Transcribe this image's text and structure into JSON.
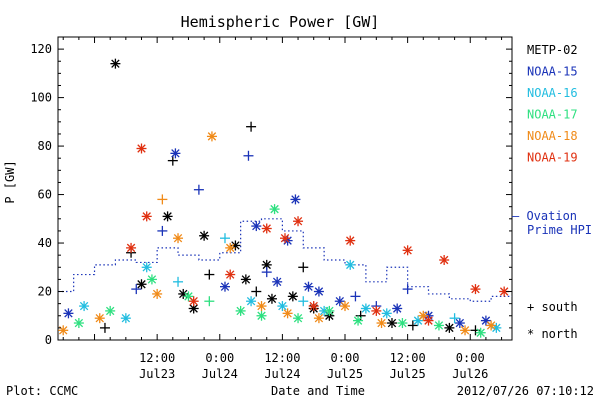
{
  "chart_data": {
    "type": "scatter",
    "title": "Hemispheric Power [GW]",
    "ylabel": "P [GW]",
    "xlabel": "Date and Time",
    "ylim": [
      0,
      125
    ],
    "xlim": [
      "2012-07-22 17:00",
      "2012-07-26 08:00"
    ],
    "yticks": [
      0,
      20,
      40,
      60,
      80,
      100,
      120
    ],
    "xticks": [
      {
        "t": "2012-07-23 12:00",
        "time": "12:00",
        "date": "Jul23"
      },
      {
        "t": "2012-07-24 00:00",
        "time": "0:00",
        "date": "Jul24"
      },
      {
        "t": "2012-07-24 12:00",
        "time": "12:00",
        "date": "Jul24"
      },
      {
        "t": "2012-07-25 00:00",
        "time": "0:00",
        "date": "Jul25"
      },
      {
        "t": "2012-07-25 12:00",
        "time": "12:00",
        "date": "Jul25"
      },
      {
        "t": "2012-07-26 00:00",
        "time": "0:00",
        "date": "Jul26"
      }
    ],
    "marker_legend": [
      {
        "symbol": "+",
        "label": "south"
      },
      {
        "symbol": "*",
        "label": "north"
      }
    ],
    "series": [
      {
        "name": "METP-02",
        "color": "#000000",
        "points": [
          {
            "x": "2012-07-23 04:00",
            "y": 114,
            "m": "*"
          },
          {
            "x": "2012-07-23 14:00",
            "y": 51,
            "m": "*"
          },
          {
            "x": "2012-07-23 15:00",
            "y": 74,
            "m": "+"
          },
          {
            "x": "2012-07-23 07:00",
            "y": 36,
            "m": "+"
          },
          {
            "x": "2012-07-23 09:00",
            "y": 23,
            "m": "*"
          },
          {
            "x": "2012-07-23 17:00",
            "y": 19,
            "m": "*"
          },
          {
            "x": "2012-07-23 21:00",
            "y": 43,
            "m": "*"
          },
          {
            "x": "2012-07-23 22:00",
            "y": 27,
            "m": "+"
          },
          {
            "x": "2012-07-24 03:00",
            "y": 39,
            "m": "*"
          },
          {
            "x": "2012-07-24 05:00",
            "y": 25,
            "m": "*"
          },
          {
            "x": "2012-07-24 06:00",
            "y": 88,
            "m": "+"
          },
          {
            "x": "2012-07-24 07:00",
            "y": 20,
            "m": "+"
          },
          {
            "x": "2012-07-24 09:00",
            "y": 31,
            "m": "*"
          },
          {
            "x": "2012-07-24 10:00",
            "y": 17,
            "m": "*"
          },
          {
            "x": "2012-07-24 14:00",
            "y": 18,
            "m": "*"
          },
          {
            "x": "2012-07-24 16:00",
            "y": 30,
            "m": "+"
          },
          {
            "x": "2012-07-24 18:00",
            "y": 13,
            "m": "*"
          },
          {
            "x": "2012-07-24 21:00",
            "y": 10,
            "m": "*"
          },
          {
            "x": "2012-07-25 03:00",
            "y": 10,
            "m": "+"
          },
          {
            "x": "2012-07-25 09:00",
            "y": 7,
            "m": "*"
          },
          {
            "x": "2012-07-25 13:00",
            "y": 6,
            "m": "+"
          },
          {
            "x": "2012-07-25 20:00",
            "y": 5,
            "m": "*"
          },
          {
            "x": "2012-07-26 01:00",
            "y": 4,
            "m": "+"
          },
          {
            "x": "2012-07-23 02:00",
            "y": 5,
            "m": "+"
          },
          {
            "x": "2012-07-23 19:00",
            "y": 13,
            "m": "*"
          }
        ]
      },
      {
        "name": "NOAA-15",
        "color": "#1a33b8",
        "points": [
          {
            "x": "2012-07-23 15:30",
            "y": 77,
            "m": "*"
          },
          {
            "x": "2012-07-23 13:00",
            "y": 45,
            "m": "+"
          },
          {
            "x": "2012-07-23 20:00",
            "y": 62,
            "m": "+"
          },
          {
            "x": "2012-07-24 05:30",
            "y": 76,
            "m": "+"
          },
          {
            "x": "2012-07-24 07:00",
            "y": 47,
            "m": "*"
          },
          {
            "x": "2012-07-24 13:00",
            "y": 41,
            "m": "*"
          },
          {
            "x": "2012-07-24 14:30",
            "y": 58,
            "m": "*"
          },
          {
            "x": "2012-07-24 11:00",
            "y": 24,
            "m": "*"
          },
          {
            "x": "2012-07-24 19:00",
            "y": 20,
            "m": "*"
          },
          {
            "x": "2012-07-24 23:00",
            "y": 16,
            "m": "*"
          },
          {
            "x": "2012-07-25 06:00",
            "y": 14,
            "m": "+"
          },
          {
            "x": "2012-07-25 10:00",
            "y": 13,
            "m": "*"
          },
          {
            "x": "2012-07-25 16:00",
            "y": 10,
            "m": "*"
          },
          {
            "x": "2012-07-25 22:00",
            "y": 7,
            "m": "*"
          },
          {
            "x": "2012-07-26 03:00",
            "y": 8,
            "m": "*"
          },
          {
            "x": "2012-07-23 08:00",
            "y": 21,
            "m": "+"
          },
          {
            "x": "2012-07-22 19:00",
            "y": 11,
            "m": "*"
          },
          {
            "x": "2012-07-24 01:00",
            "y": 22,
            "m": "*"
          },
          {
            "x": "2012-07-24 09:00",
            "y": 28,
            "m": "+"
          },
          {
            "x": "2012-07-24 17:00",
            "y": 22,
            "m": "*"
          },
          {
            "x": "2012-07-25 02:00",
            "y": 18,
            "m": "+"
          },
          {
            "x": "2012-07-25 12:00",
            "y": 21,
            "m": "+"
          }
        ]
      },
      {
        "name": "NOAA-16",
        "color": "#22bde0",
        "points": [
          {
            "x": "2012-07-23 10:00",
            "y": 30,
            "m": "*"
          },
          {
            "x": "2012-07-23 16:00",
            "y": 24,
            "m": "+"
          },
          {
            "x": "2012-07-24 01:00",
            "y": 42,
            "m": "+"
          },
          {
            "x": "2012-07-24 06:00",
            "y": 16,
            "m": "*"
          },
          {
            "x": "2012-07-24 12:00",
            "y": 14,
            "m": "*"
          },
          {
            "x": "2012-07-24 20:00",
            "y": 12,
            "m": "*"
          },
          {
            "x": "2012-07-25 01:00",
            "y": 31,
            "m": "*"
          },
          {
            "x": "2012-07-25 08:00",
            "y": 11,
            "m": "*"
          },
          {
            "x": "2012-07-25 14:00",
            "y": 8,
            "m": "*"
          },
          {
            "x": "2012-07-25 21:00",
            "y": 9,
            "m": "+"
          },
          {
            "x": "2012-07-26 05:00",
            "y": 5,
            "m": "*"
          },
          {
            "x": "2012-07-22 22:00",
            "y": 14,
            "m": "*"
          },
          {
            "x": "2012-07-23 06:00",
            "y": 9,
            "m": "*"
          },
          {
            "x": "2012-07-24 16:00",
            "y": 16,
            "m": "+"
          },
          {
            "x": "2012-07-25 04:00",
            "y": 13,
            "m": "*"
          }
        ]
      },
      {
        "name": "NOAA-17",
        "color": "#2ee080",
        "points": [
          {
            "x": "2012-07-24 10:30",
            "y": 54,
            "m": "*"
          },
          {
            "x": "2012-07-23 11:00",
            "y": 25,
            "m": "*"
          },
          {
            "x": "2012-07-23 18:00",
            "y": 18,
            "m": "*"
          },
          {
            "x": "2012-07-23 22:00",
            "y": 16,
            "m": "+"
          },
          {
            "x": "2012-07-24 04:00",
            "y": 12,
            "m": "*"
          },
          {
            "x": "2012-07-24 08:00",
            "y": 10,
            "m": "*"
          },
          {
            "x": "2012-07-24 15:00",
            "y": 9,
            "m": "*"
          },
          {
            "x": "2012-07-24 21:00",
            "y": 12,
            "m": "*"
          },
          {
            "x": "2012-07-25 02:30",
            "y": 8,
            "m": "*"
          },
          {
            "x": "2012-07-25 11:00",
            "y": 7,
            "m": "*"
          },
          {
            "x": "2012-07-25 18:00",
            "y": 6,
            "m": "*"
          },
          {
            "x": "2012-07-26 02:00",
            "y": 3,
            "m": "*"
          },
          {
            "x": "2012-07-22 21:00",
            "y": 7,
            "m": "*"
          },
          {
            "x": "2012-07-23 03:00",
            "y": 12,
            "m": "*"
          }
        ]
      },
      {
        "name": "NOAA-18",
        "color": "#f08a18",
        "points": [
          {
            "x": "2012-07-23 22:30",
            "y": 84,
            "m": "*"
          },
          {
            "x": "2012-07-23 13:00",
            "y": 58,
            "m": "+"
          },
          {
            "x": "2012-07-23 16:00",
            "y": 42,
            "m": "*"
          },
          {
            "x": "2012-07-23 12:00",
            "y": 19,
            "m": "*"
          },
          {
            "x": "2012-07-24 02:00",
            "y": 38,
            "m": "*"
          },
          {
            "x": "2012-07-24 08:00",
            "y": 14,
            "m": "*"
          },
          {
            "x": "2012-07-24 13:00",
            "y": 11,
            "m": "*"
          },
          {
            "x": "2012-07-24 19:00",
            "y": 9,
            "m": "*"
          },
          {
            "x": "2012-07-25 00:00",
            "y": 14,
            "m": "*"
          },
          {
            "x": "2012-07-25 07:00",
            "y": 7,
            "m": "*"
          },
          {
            "x": "2012-07-25 15:00",
            "y": 10,
            "m": "*"
          },
          {
            "x": "2012-07-25 23:00",
            "y": 4,
            "m": "*"
          },
          {
            "x": "2012-07-26 04:00",
            "y": 6,
            "m": "*"
          },
          {
            "x": "2012-07-22 18:00",
            "y": 4,
            "m": "*"
          },
          {
            "x": "2012-07-23 01:00",
            "y": 9,
            "m": "*"
          }
        ]
      },
      {
        "name": "NOAA-19",
        "color": "#e03010",
        "points": [
          {
            "x": "2012-07-23 09:00",
            "y": 79,
            "m": "*"
          },
          {
            "x": "2012-07-23 10:00",
            "y": 51,
            "m": "*"
          },
          {
            "x": "2012-07-24 15:00",
            "y": 49,
            "m": "*"
          },
          {
            "x": "2012-07-24 12:30",
            "y": 42,
            "m": "*"
          },
          {
            "x": "2012-07-24 09:00",
            "y": 46,
            "m": "*"
          },
          {
            "x": "2012-07-25 01:00",
            "y": 41,
            "m": "*"
          },
          {
            "x": "2012-07-25 12:00",
            "y": 37,
            "m": "*"
          },
          {
            "x": "2012-07-25 19:00",
            "y": 33,
            "m": "*"
          },
          {
            "x": "2012-07-26 01:00",
            "y": 21,
            "m": "*"
          },
          {
            "x": "2012-07-26 06:30",
            "y": 20,
            "m": "*"
          },
          {
            "x": "2012-07-23 07:00",
            "y": 38,
            "m": "*"
          },
          {
            "x": "2012-07-24 02:00",
            "y": 27,
            "m": "*"
          },
          {
            "x": "2012-07-24 18:00",
            "y": 14,
            "m": "*"
          },
          {
            "x": "2012-07-25 06:00",
            "y": 12,
            "m": "*"
          },
          {
            "x": "2012-07-25 16:00",
            "y": 8,
            "m": "*"
          },
          {
            "x": "2012-07-23 19:00",
            "y": 16,
            "m": "*"
          }
        ]
      }
    ],
    "ovation": {
      "name": "— Ovation Prime HPI",
      "label_line1": "— Ovation",
      "label_line2": "Prime HPI",
      "color": "#1a33b8",
      "x": [
        "2012-07-22 17:00",
        "2012-07-22 20:00",
        "2012-07-23 00:00",
        "2012-07-23 04:00",
        "2012-07-23 08:00",
        "2012-07-23 12:00",
        "2012-07-23 16:00",
        "2012-07-23 20:00",
        "2012-07-24 00:00",
        "2012-07-24 04:00",
        "2012-07-24 08:00",
        "2012-07-24 12:00",
        "2012-07-24 16:00",
        "2012-07-24 20:00",
        "2012-07-25 00:00",
        "2012-07-25 04:00",
        "2012-07-25 08:00",
        "2012-07-25 12:00",
        "2012-07-25 16:00",
        "2012-07-25 20:00",
        "2012-07-26 00:00",
        "2012-07-26 04:00",
        "2012-07-26 08:00"
      ],
      "y": [
        20,
        27,
        31,
        33,
        32,
        38,
        35,
        33,
        36,
        49,
        50,
        45,
        38,
        33,
        31,
        24,
        30,
        22,
        19,
        17,
        16,
        18,
        18
      ]
    }
  },
  "footer": {
    "plot_credit": "Plot: CCMC",
    "timestamp": "2012/07/26 07:10:12"
  }
}
